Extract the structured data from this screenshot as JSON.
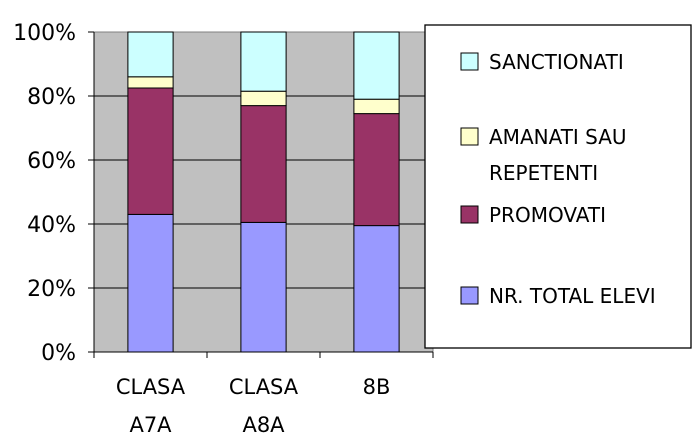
{
  "chart_data": {
    "type": "bar",
    "stacked": "percent",
    "categories": [
      [
        "CLASA",
        "A7A"
      ],
      [
        "CLASA",
        "A8A"
      ],
      [
        "8B"
      ]
    ],
    "series": [
      {
        "name": "NR. TOTAL ELEVI",
        "color": "#9999ff",
        "values": [
          43,
          40.5,
          39.5
        ]
      },
      {
        "name": "PROMOVATI",
        "color": "#993366",
        "values": [
          39.5,
          36.5,
          35
        ]
      },
      {
        "name": "AMANATI SAU REPETENTI",
        "color": "#ffffcc",
        "values": [
          3.5,
          4.5,
          4.5
        ]
      },
      {
        "name": "SANCTIONATI",
        "color": "#ccffff",
        "values": [
          14,
          18.5,
          21
        ]
      }
    ],
    "legend_order": [
      "SANCTIONATI",
      "AMANATI SAU REPETENTI",
      "PROMOVATI",
      "NR. TOTAL ELEVI"
    ],
    "ylim": [
      0,
      100
    ],
    "yticks": [
      "0%",
      "20%",
      "40%",
      "60%",
      "80%",
      "100%"
    ],
    "grid": true,
    "plot_background": "#c0c0c0",
    "legend_position": "right"
  }
}
